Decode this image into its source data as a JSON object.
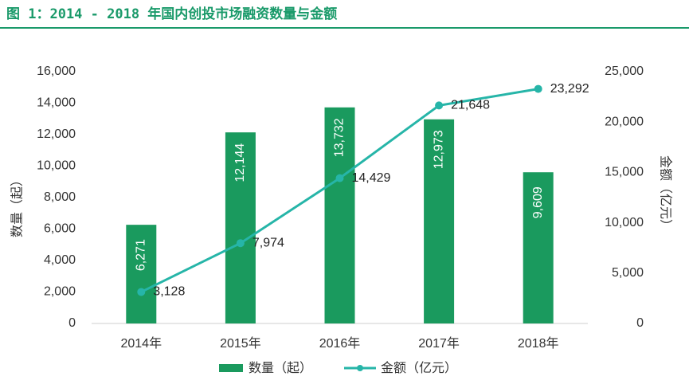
{
  "header": {
    "title": "图 1：2014 - 2018 年国内创投市场融资数量与金额"
  },
  "colors": {
    "bar": "#1a9a5e",
    "line": "#26b5a8",
    "title": "#1a9a6a",
    "text": "#333333"
  },
  "chart_data": {
    "type": "bar",
    "title": "",
    "categories": [
      "2014年",
      "2015年",
      "2016年",
      "2017年",
      "2018年"
    ],
    "series": [
      {
        "name": "数量（起）",
        "type": "bar",
        "axis": "left",
        "values": [
          6271,
          12144,
          13732,
          12973,
          9609
        ],
        "labels": [
          "6,271",
          "12,144",
          "13,732",
          "12,973",
          "9,609"
        ]
      },
      {
        "name": "金额（亿元）",
        "type": "line",
        "axis": "right",
        "values": [
          3128,
          7974,
          14429,
          21648,
          23292
        ],
        "labels": [
          "3,128",
          "7,974",
          "14,429",
          "21,648",
          "23,292"
        ]
      }
    ],
    "y_left": {
      "label": "数量（起）",
      "ylim": [
        0,
        16000
      ],
      "ticks": [
        "0",
        "2,000",
        "4,000",
        "6,000",
        "8,000",
        "10,000",
        "12,000",
        "14,000",
        "16,000"
      ]
    },
    "y_right": {
      "label": "金额（亿元）",
      "ylim": [
        0,
        25000
      ],
      "ticks": [
        "0",
        "5,000",
        "10,000",
        "15,000",
        "20,000",
        "25,000"
      ]
    },
    "grid": false,
    "legend": "bottom"
  }
}
